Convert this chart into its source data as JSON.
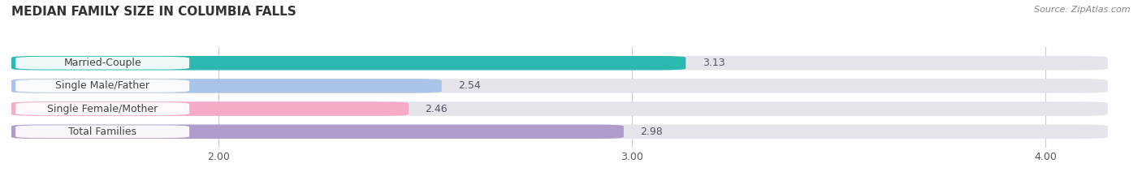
{
  "title": "MEDIAN FAMILY SIZE IN COLUMBIA FALLS",
  "source": "Source: ZipAtlas.com",
  "categories": [
    "Married-Couple",
    "Single Male/Father",
    "Single Female/Mother",
    "Total Families"
  ],
  "values": [
    3.13,
    2.54,
    2.46,
    2.98
  ],
  "bar_colors": [
    "#2ab8b0",
    "#aac4e8",
    "#f5aac8",
    "#b09ccc"
  ],
  "bar_bg_color": "#e4e4ea",
  "xlim_left": 1.5,
  "xlim_right": 4.15,
  "xticks": [
    2.0,
    3.0,
    4.0
  ],
  "xtick_labels": [
    "2.00",
    "3.00",
    "4.00"
  ],
  "bar_height": 0.62,
  "bar_gap": 0.38,
  "label_fontsize": 9,
  "value_fontsize": 9,
  "title_fontsize": 11,
  "background_color": "#ffffff",
  "grid_color": "#ccccda",
  "text_color": "#555566",
  "title_color": "#333333",
  "source_color": "#888888"
}
